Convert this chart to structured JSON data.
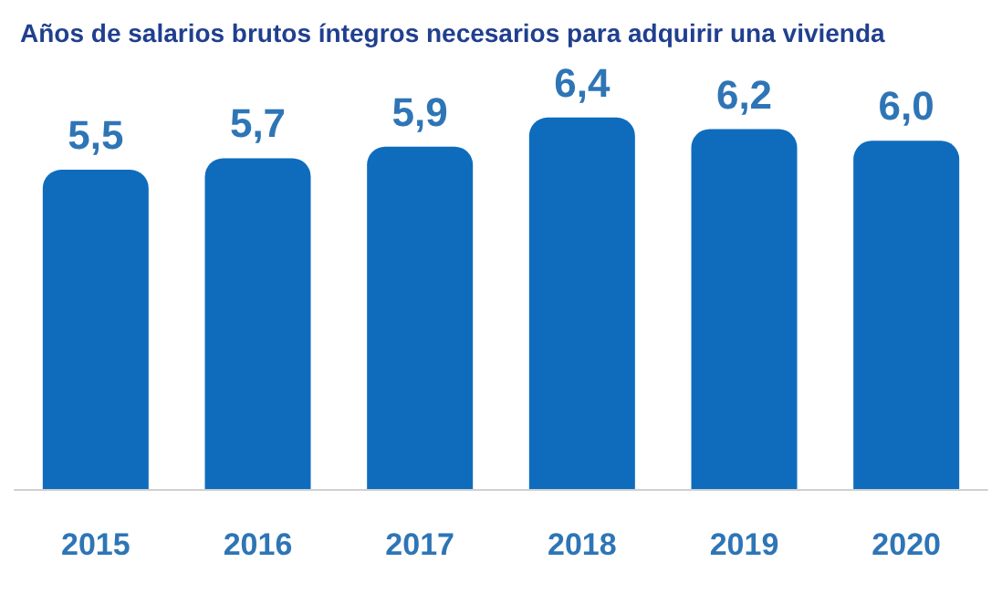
{
  "chart_data": {
    "type": "bar",
    "title": "Años de salarios brutos íntegros necesarios para adquirir una vivienda",
    "categories": [
      "2015",
      "2016",
      "2017",
      "2018",
      "2019",
      "2020"
    ],
    "values": [
      5.5,
      5.7,
      5.9,
      6.4,
      6.2,
      6.0
    ],
    "value_labels": [
      "5,5",
      "5,7",
      "5,9",
      "6,4",
      "6,2",
      "6,0"
    ],
    "color": "#0f6cbd",
    "tick_labels": "x"
  }
}
